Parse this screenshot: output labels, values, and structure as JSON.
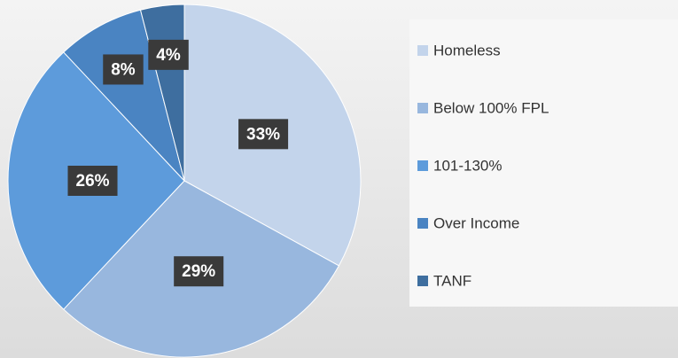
{
  "chart_data": {
    "type": "pie",
    "categories": [
      "Homeless",
      "Below 100% FPL",
      "101-130%",
      "Over Income",
      "TANF"
    ],
    "values": [
      33,
      29,
      26,
      8,
      4
    ],
    "value_labels": [
      "33%",
      "29%",
      "26%",
      "8%",
      "4%"
    ],
    "colors": [
      "#c3d4eb",
      "#98b7de",
      "#5d9bdb",
      "#4a84c2",
      "#3e6e9f"
    ],
    "legend": "right"
  }
}
